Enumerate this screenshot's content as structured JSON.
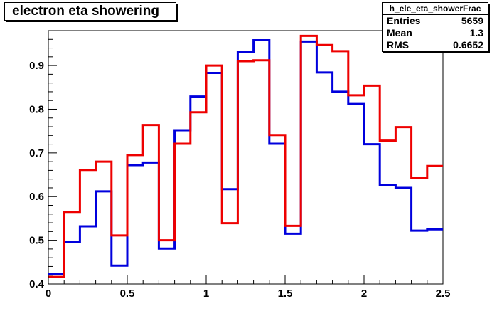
{
  "chart_data": {
    "type": "line",
    "title": "electron eta showering",
    "xlim": [
      0,
      2.5
    ],
    "ylim": [
      0.4,
      0.98
    ],
    "x_ticks": [
      "0",
      "0.5",
      "1",
      "1.5",
      "2",
      "2.5"
    ],
    "y_ticks": [
      "0.4",
      "0.5",
      "0.6",
      "0.7",
      "0.8",
      "0.9"
    ],
    "bin_edges": [
      0,
      0.1,
      0.2,
      0.3,
      0.4,
      0.5,
      0.6,
      0.7,
      0.8,
      0.9,
      1.0,
      1.1,
      1.2,
      1.3,
      1.4,
      1.5,
      1.6,
      1.7,
      1.8,
      1.9,
      2.0,
      2.1,
      2.2,
      2.3,
      2.4,
      2.5
    ],
    "series": [
      {
        "color": "#0000dd",
        "values": [
          0.423,
          0.497,
          0.532,
          0.612,
          0.442,
          0.672,
          0.678,
          0.481,
          0.752,
          0.829,
          0.883,
          0.617,
          0.932,
          0.958,
          0.721,
          0.515,
          0.955,
          0.884,
          0.84,
          0.812,
          0.72,
          0.626,
          0.62,
          0.522,
          0.525
        ]
      },
      {
        "color": "#ee0000",
        "values": [
          0.416,
          0.565,
          0.661,
          0.68,
          0.511,
          0.695,
          0.764,
          0.5,
          0.721,
          0.793,
          0.9,
          0.539,
          0.91,
          0.912,
          0.741,
          0.533,
          0.968,
          0.947,
          0.933,
          0.832,
          0.854,
          0.728,
          0.759,
          0.643,
          0.67
        ]
      }
    ]
  },
  "stats": {
    "name": "h_ele_eta_showerFrac",
    "rows": [
      {
        "label": "Entries",
        "value": "5659"
      },
      {
        "label": "Mean",
        "value": "1.3"
      },
      {
        "label": "RMS",
        "value": "0.6652"
      }
    ]
  }
}
